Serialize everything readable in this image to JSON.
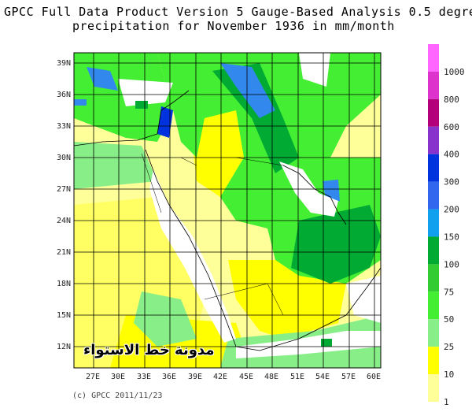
{
  "title_line1": "GPCC Full Data Product Version 5 Gauge-Based Analysis 0.5 degree",
  "title_line2": "precipitation for November  1936 in mm/month",
  "copyright": "(c) GPCC 2011/11/23",
  "watermark": "مدونة خط الاستواء",
  "lat_labels": [
    "39N",
    "36N",
    "33N",
    "30N",
    "27N",
    "24N",
    "21N",
    "18N",
    "15N",
    "12N"
  ],
  "lon_labels": [
    "27E",
    "30E",
    "33E",
    "36E",
    "39E",
    "42E",
    "45E",
    "48E",
    "51E",
    "54E",
    "57E",
    "60E"
  ],
  "legend": {
    "labels": [
      "1000",
      "800",
      "600",
      "400",
      "300",
      "200",
      "150",
      "100",
      "75",
      "50",
      "25",
      "10",
      "1"
    ],
    "colors": [
      "#ff66ff",
      "#dd33cc",
      "#b3007a",
      "#8833cc",
      "#0033dd",
      "#3366ee",
      "#11a0ee",
      "#00aa33",
      "#33cc33",
      "#44ee33",
      "#88ee88",
      "#ffff00",
      "#ffff99"
    ]
  },
  "colors": {
    "light_yellow": "#ffff99",
    "yellow": "#ffff00",
    "light_green": "#88ee88",
    "green": "#33dd33",
    "dark_green": "#00aa33",
    "blue": "#3388ee",
    "dark_blue": "#0033dd",
    "no_data": "#ffffff"
  }
}
